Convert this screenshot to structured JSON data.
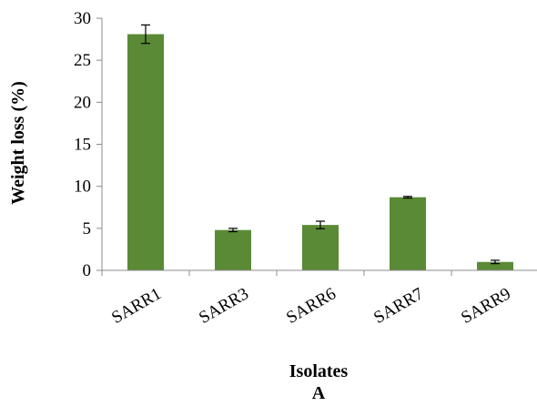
{
  "chart_data": {
    "type": "bar",
    "categories": [
      "SARR1",
      "SARR3",
      "SARR6",
      "SARR7",
      "SARR9"
    ],
    "values": [
      28.1,
      4.8,
      5.4,
      8.7,
      1.0
    ],
    "errors": [
      1.1,
      0.2,
      0.45,
      0.1,
      0.2
    ],
    "ylabel": "Weight  loss (%)",
    "xlabel": "Isolates",
    "panel_label": "A",
    "ylim": [
      0,
      30
    ],
    "yticks": [
      0,
      5,
      10,
      15,
      20,
      25,
      30
    ],
    "bar_color": "#5a8a35",
    "grid": false
  }
}
